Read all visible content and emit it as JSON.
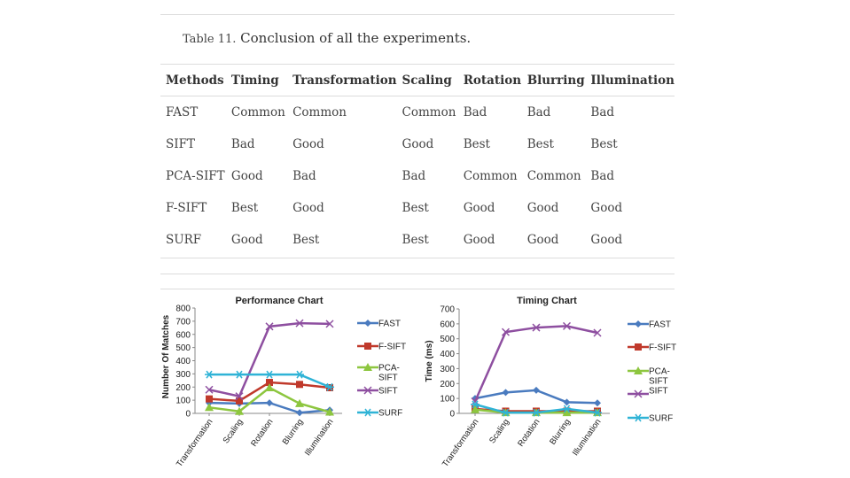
{
  "caption": {
    "label": "Table 11.",
    "text": " Conclusion of all the experiments."
  },
  "table": {
    "headers": [
      "Methods",
      "Timing",
      "Transformation",
      "Scaling",
      "Rotation",
      "Blurring",
      "Illumination"
    ],
    "rows": [
      [
        "FAST",
        "Common",
        "Common",
        "Common",
        "Bad",
        "Bad",
        "Bad"
      ],
      [
        "SIFT",
        "Bad",
        "Good",
        "Good",
        "Best",
        "Best",
        "Best"
      ],
      [
        "PCA-SIFT",
        "Good",
        "Bad",
        "Bad",
        "Common",
        "Common",
        "Bad"
      ],
      [
        "F-SIFT",
        "Best",
        "Good",
        "Best",
        "Good",
        "Good",
        "Good"
      ],
      [
        "SURF",
        "Good",
        "Best",
        "Best",
        "Good",
        "Good",
        "Good"
      ]
    ]
  },
  "colors": {
    "FAST": "#4a7bbf",
    "F-SIFT": "#c0392b",
    "PCA-SIFT": "#8dc63f",
    "SIFT": "#8e4fa0",
    "SURF": "#2fb3d6"
  },
  "chart_data": [
    {
      "type": "line",
      "title": "Performance Chart",
      "xlabel": "",
      "ylabel": "Number Of Matches",
      "ylim": [
        0,
        800
      ],
      "yticks": [
        0,
        100,
        200,
        300,
        400,
        500,
        600,
        700,
        800
      ],
      "categories": [
        "Transformation",
        "Scaling",
        "Rotation",
        "Blurring",
        "Illumination"
      ],
      "legend_position": "right",
      "grid": false,
      "series": [
        {
          "name": "FAST",
          "label": "FAST",
          "marker": "diamond",
          "values": [
            80,
            75,
            80,
            5,
            25
          ]
        },
        {
          "name": "F-SIFT",
          "label": "F-SIFT",
          "marker": "square",
          "values": [
            110,
            95,
            235,
            220,
            195
          ]
        },
        {
          "name": "PCA-SIFT",
          "label": "PCA-\nSIFT",
          "marker": "triangle",
          "values": [
            45,
            15,
            195,
            75,
            10
          ]
        },
        {
          "name": "SIFT",
          "label": "SIFT",
          "marker": "x",
          "values": [
            180,
            130,
            660,
            685,
            680
          ]
        },
        {
          "name": "SURF",
          "label": "SURF",
          "marker": "star",
          "values": [
            295,
            295,
            295,
            295,
            200
          ]
        }
      ]
    },
    {
      "type": "line",
      "title": "Timing Chart",
      "xlabel": "",
      "ylabel": "Time (ms)",
      "ylim": [
        0,
        700
      ],
      "yticks": [
        0,
        100,
        200,
        300,
        400,
        500,
        600,
        700
      ],
      "categories": [
        "Transformation",
        "Scaling",
        "Rotation",
        "Blurring",
        "Illumination"
      ],
      "legend_position": "right",
      "grid": false,
      "series": [
        {
          "name": "FAST",
          "label": "FAST",
          "marker": "diamond",
          "values": [
            100,
            140,
            155,
            75,
            70
          ]
        },
        {
          "name": "F-SIFT",
          "label": "F-SIFT",
          "marker": "square",
          "values": [
            30,
            15,
            15,
            15,
            15
          ]
        },
        {
          "name": "PCA-SIFT",
          "label": "PCA-\nSIFT\nSIFT",
          "marker": "triangle",
          "values": [
            25,
            5,
            5,
            5,
            5
          ]
        },
        {
          "name": "SIFT",
          "label": "",
          "marker": "x",
          "values": [
            80,
            545,
            575,
            585,
            540
          ]
        },
        {
          "name": "SURF",
          "label": "SURF",
          "marker": "star",
          "values": [
            60,
            5,
            5,
            30,
            5
          ]
        }
      ]
    }
  ]
}
